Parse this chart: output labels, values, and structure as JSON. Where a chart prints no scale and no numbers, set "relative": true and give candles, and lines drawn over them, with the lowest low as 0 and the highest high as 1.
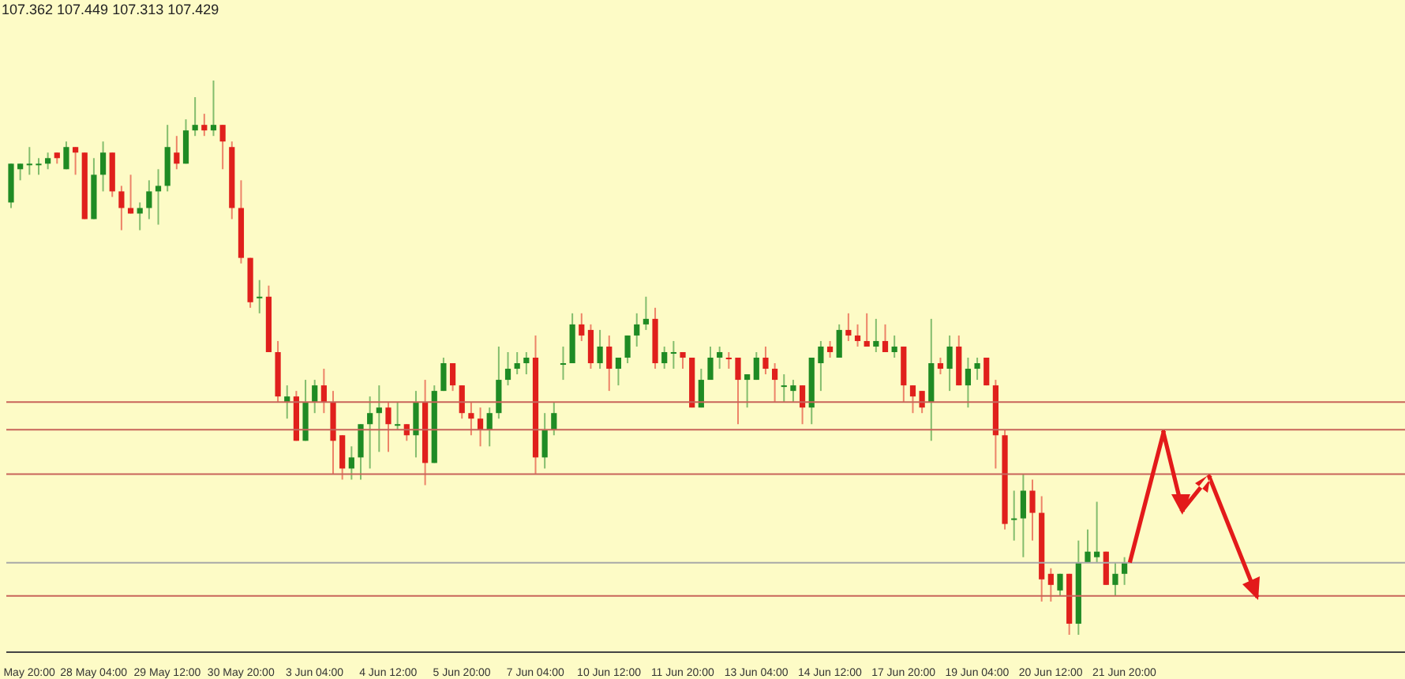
{
  "chart_data": {
    "type": "candlestick",
    "relative": true,
    "annotations": [
      "107.362 107.449 107.313 107.429"
    ],
    "categories": [
      null,
      null,
      "May 20:00",
      null,
      null,
      null,
      null,
      null,
      null,
      "28 May 04:00",
      null,
      null,
      null,
      null,
      null,
      null,
      null,
      "29 May 12:00",
      null,
      null,
      null,
      null,
      null,
      null,
      null,
      "30 May 20:00",
      null,
      null,
      null,
      null,
      null,
      null,
      null,
      "3 Jun 04:00",
      null,
      null,
      null,
      null,
      null,
      null,
      null,
      "4 Jun 12:00",
      null,
      null,
      null,
      null,
      null,
      null,
      null,
      "5 Jun 20:00",
      null,
      null,
      null,
      null,
      null,
      null,
      null,
      "7 Jun 04:00",
      null,
      null,
      null,
      null,
      null,
      null,
      null,
      "10 Jun 12:00",
      null,
      null,
      null,
      null,
      null,
      null,
      null,
      "11 Jun 20:00",
      null,
      null,
      null,
      null,
      null,
      null,
      null,
      "13 Jun 04:00",
      null,
      null,
      null,
      null,
      null,
      null,
      null,
      "14 Jun 12:00",
      null,
      null,
      null,
      null,
      null,
      null,
      null,
      "17 Jun 20:00",
      null,
      null,
      null,
      null,
      null,
      null,
      null,
      "19 Jun 04:00",
      null,
      null,
      null,
      null,
      null,
      null,
      null,
      "20 Jun 12:00",
      null,
      null,
      null,
      null,
      null,
      null,
      null,
      "21 Jun 20:00"
    ],
    "ohlc": [
      [
        0.78,
        0.85,
        0.77,
        0.85
      ],
      [
        0.84,
        0.85,
        0.82,
        0.85
      ],
      [
        0.85,
        0.88,
        0.83,
        0.85
      ],
      [
        0.85,
        0.86,
        0.83,
        0.85
      ],
      [
        0.85,
        0.87,
        0.84,
        0.86
      ],
      [
        0.87,
        0.87,
        0.85,
        0.86
      ],
      [
        0.84,
        0.89,
        0.84,
        0.88
      ],
      [
        0.88,
        0.88,
        0.83,
        0.87
      ],
      [
        0.87,
        0.87,
        0.75,
        0.75
      ],
      [
        0.75,
        0.86,
        0.75,
        0.83
      ],
      [
        0.83,
        0.89,
        0.8,
        0.87
      ],
      [
        0.87,
        0.87,
        0.79,
        0.8
      ],
      [
        0.8,
        0.81,
        0.73,
        0.77
      ],
      [
        0.77,
        0.83,
        0.76,
        0.76
      ],
      [
        0.76,
        0.78,
        0.73,
        0.77
      ],
      [
        0.77,
        0.82,
        0.75,
        0.8
      ],
      [
        0.8,
        0.84,
        0.74,
        0.81
      ],
      [
        0.81,
        0.92,
        0.8,
        0.88
      ],
      [
        0.87,
        0.9,
        0.84,
        0.85
      ],
      [
        0.85,
        0.93,
        0.85,
        0.91
      ],
      [
        0.91,
        0.97,
        0.9,
        0.92
      ],
      [
        0.92,
        0.94,
        0.9,
        0.91
      ],
      [
        0.91,
        1.0,
        0.9,
        0.92
      ],
      [
        0.92,
        0.92,
        0.84,
        0.89
      ],
      [
        0.88,
        0.89,
        0.75,
        0.77
      ],
      [
        0.77,
        0.82,
        0.67,
        0.68
      ],
      [
        0.68,
        0.68,
        0.59,
        0.6
      ],
      [
        0.61,
        0.64,
        0.58,
        0.61
      ],
      [
        0.61,
        0.63,
        0.51,
        0.51
      ],
      [
        0.51,
        0.53,
        0.42,
        0.43
      ],
      [
        0.42,
        0.45,
        0.39,
        0.43
      ],
      [
        0.43,
        0.44,
        0.35,
        0.35
      ],
      [
        0.35,
        0.46,
        0.35,
        0.42
      ],
      [
        0.42,
        0.46,
        0.4,
        0.45
      ],
      [
        0.45,
        0.48,
        0.4,
        0.42
      ],
      [
        0.42,
        0.44,
        0.29,
        0.35
      ],
      [
        0.36,
        0.36,
        0.28,
        0.3
      ],
      [
        0.3,
        0.34,
        0.28,
        0.32
      ],
      [
        0.32,
        0.38,
        0.28,
        0.38
      ],
      [
        0.38,
        0.43,
        0.3,
        0.4
      ],
      [
        0.4,
        0.45,
        0.33,
        0.41
      ],
      [
        0.41,
        0.42,
        0.33,
        0.38
      ],
      [
        0.38,
        0.42,
        0.37,
        0.38
      ],
      [
        0.38,
        0.38,
        0.35,
        0.36
      ],
      [
        0.36,
        0.44,
        0.32,
        0.42
      ],
      [
        0.42,
        0.46,
        0.27,
        0.31
      ],
      [
        0.31,
        0.45,
        0.31,
        0.44
      ],
      [
        0.44,
        0.5,
        0.44,
        0.49
      ],
      [
        0.49,
        0.49,
        0.44,
        0.45
      ],
      [
        0.45,
        0.45,
        0.39,
        0.4
      ],
      [
        0.4,
        0.42,
        0.36,
        0.39
      ],
      [
        0.39,
        0.41,
        0.34,
        0.37
      ],
      [
        0.37,
        0.41,
        0.34,
        0.4
      ],
      [
        0.4,
        0.52,
        0.39,
        0.46
      ],
      [
        0.46,
        0.51,
        0.45,
        0.48
      ],
      [
        0.48,
        0.51,
        0.47,
        0.49
      ],
      [
        0.49,
        0.51,
        0.47,
        0.5
      ],
      [
        0.5,
        0.54,
        0.29,
        0.32
      ],
      [
        0.32,
        0.4,
        0.3,
        0.37
      ],
      [
        0.37,
        0.42,
        0.36,
        0.4
      ],
      [
        0.49,
        0.52,
        0.46,
        0.49
      ],
      [
        0.49,
        0.58,
        0.49,
        0.56
      ],
      [
        0.56,
        0.58,
        0.53,
        0.54
      ],
      [
        0.55,
        0.56,
        0.48,
        0.49
      ],
      [
        0.49,
        0.55,
        0.48,
        0.52
      ],
      [
        0.52,
        0.54,
        0.44,
        0.48
      ],
      [
        0.48,
        0.5,
        0.45,
        0.5
      ],
      [
        0.5,
        0.54,
        0.49,
        0.54
      ],
      [
        0.54,
        0.58,
        0.52,
        0.56
      ],
      [
        0.56,
        0.61,
        0.55,
        0.57
      ],
      [
        0.57,
        0.59,
        0.48,
        0.49
      ],
      [
        0.49,
        0.52,
        0.48,
        0.51
      ],
      [
        0.51,
        0.53,
        0.48,
        0.51
      ],
      [
        0.51,
        0.51,
        0.48,
        0.5
      ],
      [
        0.5,
        0.5,
        0.41,
        0.41
      ],
      [
        0.41,
        0.48,
        0.41,
        0.46
      ],
      [
        0.46,
        0.52,
        0.46,
        0.5
      ],
      [
        0.5,
        0.52,
        0.48,
        0.51
      ],
      [
        0.5,
        0.51,
        0.48,
        0.5
      ],
      [
        0.5,
        0.5,
        0.38,
        0.46
      ],
      [
        0.46,
        0.47,
        0.41,
        0.47
      ],
      [
        0.46,
        0.51,
        0.46,
        0.5
      ],
      [
        0.5,
        0.52,
        0.47,
        0.48
      ],
      [
        0.48,
        0.49,
        0.42,
        0.46
      ],
      [
        0.45,
        0.47,
        0.42,
        0.45
      ],
      [
        0.44,
        0.46,
        0.42,
        0.45
      ],
      [
        0.45,
        0.45,
        0.38,
        0.41
      ],
      [
        0.41,
        0.5,
        0.38,
        0.5
      ],
      [
        0.49,
        0.53,
        0.44,
        0.52
      ],
      [
        0.52,
        0.53,
        0.5,
        0.51
      ],
      [
        0.5,
        0.56,
        0.5,
        0.55
      ],
      [
        0.55,
        0.58,
        0.53,
        0.54
      ],
      [
        0.54,
        0.56,
        0.52,
        0.53
      ],
      [
        0.53,
        0.58,
        0.52,
        0.52
      ],
      [
        0.52,
        0.57,
        0.51,
        0.53
      ],
      [
        0.53,
        0.56,
        0.51,
        0.51
      ],
      [
        0.51,
        0.54,
        0.5,
        0.52
      ],
      [
        0.52,
        0.52,
        0.42,
        0.45
      ],
      [
        0.45,
        0.45,
        0.4,
        0.43
      ],
      [
        0.44,
        0.44,
        0.4,
        0.41
      ],
      [
        0.42,
        0.57,
        0.35,
        0.49
      ],
      [
        0.49,
        0.5,
        0.47,
        0.48
      ],
      [
        0.48,
        0.54,
        0.44,
        0.52
      ],
      [
        0.52,
        0.54,
        0.45,
        0.45
      ],
      [
        0.45,
        0.5,
        0.41,
        0.48
      ],
      [
        0.48,
        0.5,
        0.46,
        0.49
      ],
      [
        0.5,
        0.5,
        0.45,
        0.45
      ],
      [
        0.45,
        0.46,
        0.3,
        0.36
      ],
      [
        0.36,
        0.37,
        0.19,
        0.2
      ],
      [
        0.21,
        0.26,
        0.17,
        0.21
      ],
      [
        0.21,
        0.29,
        0.14,
        0.26
      ],
      [
        0.26,
        0.28,
        0.17,
        0.22
      ],
      [
        0.22,
        0.25,
        0.06,
        0.1
      ],
      [
        0.11,
        0.12,
        0.06,
        0.09
      ],
      [
        0.08,
        0.11,
        0.07,
        0.11
      ],
      [
        0.11,
        0.11,
        0,
        0.02
      ],
      [
        0.02,
        0.17,
        0,
        0.13
      ],
      [
        0.13,
        0.19,
        0.13,
        0.15
      ],
      [
        0.14,
        0.24,
        0.13,
        0.15
      ],
      [
        0.15,
        0.15,
        0.09,
        0.09
      ],
      [
        0.09,
        0.13,
        0.07,
        0.11
      ],
      [
        0.11,
        0.14,
        0.09,
        0.13
      ]
    ],
    "colors": [
      "#1f8b24",
      "#1f8b24",
      "#1f8b24",
      "#1f8b24",
      "#1f8b24",
      "#e0201c",
      "#1f8b24",
      "#e0201c",
      "#e0201c",
      "#1f8b24",
      "#1f8b24",
      "#e0201c",
      "#e0201c",
      "#e0201c",
      "#1f8b24",
      "#1f8b24",
      "#1f8b24",
      "#1f8b24",
      "#e0201c",
      "#1f8b24",
      "#1f8b24",
      "#e0201c",
      "#1f8b24",
      "#e0201c",
      "#e0201c",
      "#e0201c",
      "#e0201c",
      "#1f8b24",
      "#e0201c",
      "#e0201c",
      "#1f8b24",
      "#e0201c",
      "#1f8b24",
      "#1f8b24",
      "#e0201c",
      "#e0201c",
      "#e0201c",
      "#1f8b24",
      "#1f8b24",
      "#1f8b24",
      "#1f8b24",
      "#e0201c",
      "#1f8b24",
      "#e0201c",
      "#1f8b24",
      "#e0201c",
      "#1f8b24",
      "#1f8b24",
      "#e0201c",
      "#e0201c",
      "#e0201c",
      "#e0201c",
      "#1f8b24",
      "#1f8b24",
      "#1f8b24",
      "#1f8b24",
      "#1f8b24",
      "#e0201c",
      "#1f8b24",
      "#1f8b24",
      "#1f8b24",
      "#1f8b24",
      "#e0201c",
      "#e0201c",
      "#1f8b24",
      "#e0201c",
      "#1f8b24",
      "#1f8b24",
      "#1f8b24",
      "#1f8b24",
      "#e0201c",
      "#1f8b24",
      "#1f8b24",
      "#e0201c",
      "#e0201c",
      "#1f8b24",
      "#1f8b24",
      "#1f8b24",
      "#e0201c",
      "#e0201c",
      "#1f8b24",
      "#1f8b24",
      "#e0201c",
      "#e0201c",
      "#1f8b24",
      "#1f8b24",
      "#e0201c",
      "#1f8b24",
      "#1f8b24",
      "#e0201c",
      "#1f8b24",
      "#e0201c",
      "#e0201c",
      "#e0201c",
      "#1f8b24",
      "#e0201c",
      "#1f8b24",
      "#e0201c",
      "#e0201c",
      "#e0201c",
      "#1f8b24",
      "#e0201c",
      "#1f8b24",
      "#e0201c",
      "#1f8b24",
      "#1f8b24",
      "#e0201c",
      "#e0201c",
      "#e0201c",
      "#1f8b24",
      "#1f8b24",
      "#e0201c",
      "#e0201c",
      "#e0201c",
      "#1f8b24",
      "#e0201c",
      "#1f8b24",
      "#1f8b24",
      "#1f8b24",
      "#e0201c",
      "#1f8b24",
      "#1f8b24"
    ],
    "ref_lines": [
      {
        "axis": "y",
        "value": 0.42,
        "color": "#c8645a"
      },
      {
        "axis": "y",
        "value": 0.37,
        "color": "#c8645a"
      },
      {
        "axis": "y",
        "value": 0.29,
        "color": "#c8645a"
      },
      {
        "axis": "y",
        "value": 0.13,
        "color": "#a8a8a8"
      },
      {
        "axis": "y",
        "value": 0.07,
        "color": "#c8645a"
      }
    ]
  }
}
